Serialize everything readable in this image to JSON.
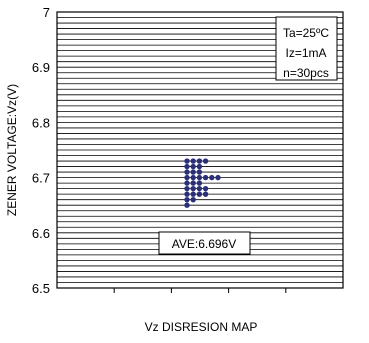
{
  "chart_data": {
    "type": "scatter",
    "title": "",
    "xlabel": "Vz DISRESION MAP",
    "ylabel": "ZENER VOLTAGE:Vz(V)",
    "ylim": [
      6.5,
      7.0
    ],
    "yticks": [
      "6.5",
      "6.6",
      "6.7",
      "6.8",
      "6.9",
      "7"
    ],
    "grid": true,
    "grid_step": 0.01,
    "point_color": "#2b2f7a",
    "conditions": [
      "Ta=25ºC",
      "Iz=1mA",
      "n=30pcs"
    ],
    "average_label": "AVE:6.696V",
    "x_columns": 5,
    "points": [
      {
        "col": 0,
        "y": 6.73
      },
      {
        "col": 0,
        "y": 6.72
      },
      {
        "col": 0,
        "y": 6.71
      },
      {
        "col": 0,
        "y": 6.7
      },
      {
        "col": 0,
        "y": 6.69
      },
      {
        "col": 0,
        "y": 6.68
      },
      {
        "col": 0,
        "y": 6.67
      },
      {
        "col": 0,
        "y": 6.66
      },
      {
        "col": 0,
        "y": 6.65
      },
      {
        "col": 1,
        "y": 6.73
      },
      {
        "col": 1,
        "y": 6.72
      },
      {
        "col": 1,
        "y": 6.71
      },
      {
        "col": 1,
        "y": 6.7
      },
      {
        "col": 1,
        "y": 6.69
      },
      {
        "col": 1,
        "y": 6.68
      },
      {
        "col": 1,
        "y": 6.67
      },
      {
        "col": 1,
        "y": 6.66
      },
      {
        "col": 2,
        "y": 6.73
      },
      {
        "col": 2,
        "y": 6.72
      },
      {
        "col": 2,
        "y": 6.71
      },
      {
        "col": 2,
        "y": 6.7
      },
      {
        "col": 2,
        "y": 6.69
      },
      {
        "col": 2,
        "y": 6.68
      },
      {
        "col": 2,
        "y": 6.67
      },
      {
        "col": 3,
        "y": 6.73
      },
      {
        "col": 3,
        "y": 6.7
      },
      {
        "col": 3,
        "y": 6.68
      },
      {
        "col": 3,
        "y": 6.67
      },
      {
        "col": 4,
        "y": 6.7
      },
      {
        "col": 4,
        "y": 6.7
      }
    ]
  }
}
